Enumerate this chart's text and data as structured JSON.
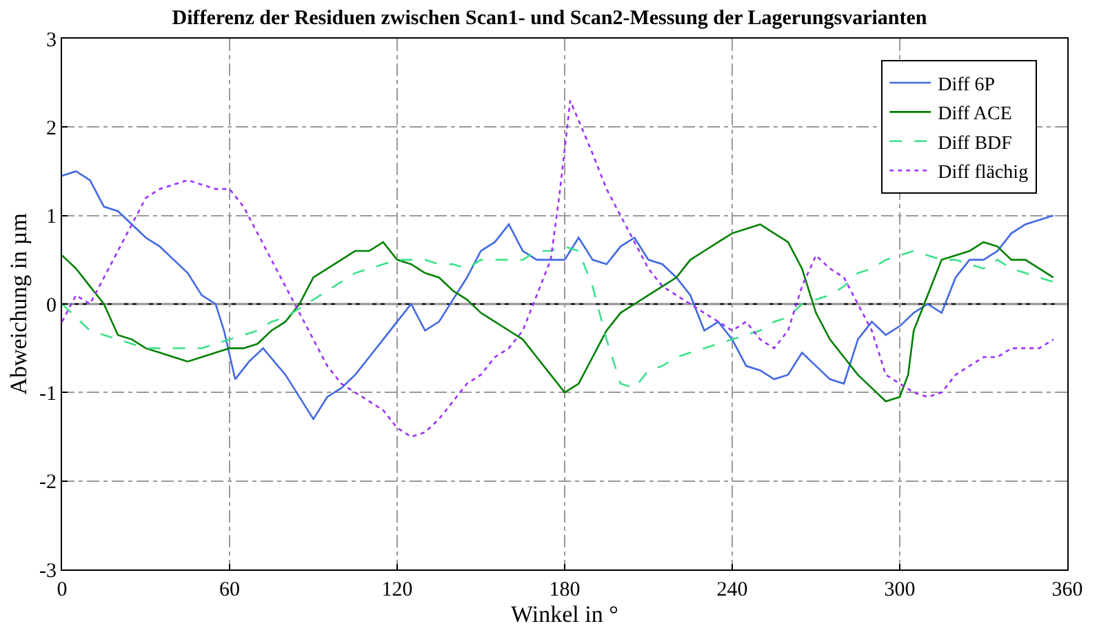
{
  "chart_data": {
    "type": "line",
    "title": "Differenz der Residuen zwischen Scan1- und Scan2-Messung der Lagerungsvarianten",
    "xlabel": "Winkel in °",
    "ylabel": "Abweichung in µm",
    "xlim": [
      0,
      360
    ],
    "xticks": [
      0,
      60,
      120,
      180,
      240,
      300,
      360
    ],
    "ylim": [
      -3,
      3
    ],
    "yticks": [
      -3,
      -2,
      -1,
      0,
      1,
      2,
      3
    ],
    "grid": true,
    "legend": "top right",
    "marker": "none",
    "ref_lines": [
      {
        "axis": "y",
        "value": 0,
        "color": "#000000",
        "line_style": "solid"
      }
    ],
    "series": [
      {
        "name": "Diff 6P",
        "color": "#4169e1",
        "line_style": "solid",
        "x": [
          0,
          5,
          10,
          15,
          20,
          25,
          30,
          35,
          40,
          45,
          50,
          55,
          58,
          62,
          67,
          72,
          80,
          90,
          95,
          100,
          105,
          110,
          115,
          120,
          125,
          130,
          135,
          140,
          145,
          150,
          155,
          160,
          165,
          170,
          175,
          180,
          185,
          190,
          195,
          200,
          205,
          210,
          215,
          220,
          225,
          230,
          235,
          240,
          245,
          250,
          255,
          260,
          265,
          270,
          275,
          280,
          285,
          290,
          295,
          300,
          305,
          310,
          315,
          320,
          325,
          330,
          335,
          340,
          345,
          350,
          355
        ],
        "values": [
          1.45,
          1.5,
          1.4,
          1.1,
          1.05,
          0.9,
          0.75,
          0.65,
          0.5,
          0.35,
          0.1,
          0.0,
          -0.3,
          -0.85,
          -0.65,
          -0.5,
          -0.8,
          -1.3,
          -1.05,
          -0.95,
          -0.8,
          -0.6,
          -0.4,
          -0.2,
          0.0,
          -0.3,
          -0.2,
          0.05,
          0.3,
          0.6,
          0.7,
          0.9,
          0.6,
          0.5,
          0.5,
          0.5,
          0.75,
          0.5,
          0.45,
          0.65,
          0.75,
          0.5,
          0.45,
          0.3,
          0.1,
          -0.3,
          -0.2,
          -0.4,
          -0.7,
          -0.75,
          -0.85,
          -0.8,
          -0.55,
          -0.7,
          -0.85,
          -0.9,
          -0.4,
          -0.2,
          -0.35,
          -0.25,
          -0.1,
          0.0,
          -0.1,
          0.3,
          0.5,
          0.5,
          0.6,
          0.8,
          0.9,
          0.95,
          1.0
        ]
      },
      {
        "name": "Diff ACE",
        "color": "#008000",
        "line_style": "solid",
        "x": [
          0,
          5,
          10,
          15,
          20,
          25,
          30,
          35,
          40,
          45,
          50,
          55,
          60,
          65,
          70,
          75,
          80,
          85,
          90,
          95,
          100,
          105,
          110,
          115,
          120,
          125,
          130,
          135,
          140,
          145,
          150,
          155,
          160,
          165,
          170,
          175,
          180,
          185,
          190,
          195,
          200,
          205,
          210,
          215,
          220,
          225,
          230,
          235,
          240,
          245,
          250,
          255,
          260,
          265,
          270,
          275,
          280,
          285,
          290,
          295,
          300,
          303,
          305,
          310,
          315,
          320,
          325,
          330,
          335,
          340,
          345,
          350,
          355
        ],
        "values": [
          0.55,
          0.4,
          0.2,
          0.0,
          -0.35,
          -0.4,
          -0.5,
          -0.55,
          -0.6,
          -0.65,
          -0.6,
          -0.55,
          -0.5,
          -0.5,
          -0.45,
          -0.3,
          -0.2,
          0.0,
          0.3,
          0.4,
          0.5,
          0.6,
          0.6,
          0.7,
          0.5,
          0.45,
          0.35,
          0.3,
          0.15,
          0.05,
          -0.1,
          -0.2,
          -0.3,
          -0.4,
          -0.6,
          -0.8,
          -1.0,
          -0.9,
          -0.6,
          -0.3,
          -0.1,
          0.0,
          0.1,
          0.2,
          0.3,
          0.5,
          0.6,
          0.7,
          0.8,
          0.85,
          0.9,
          0.8,
          0.7,
          0.4,
          -0.1,
          -0.4,
          -0.6,
          -0.8,
          -0.95,
          -1.1,
          -1.05,
          -0.8,
          -0.3,
          0.1,
          0.5,
          0.55,
          0.6,
          0.7,
          0.65,
          0.5,
          0.5,
          0.4,
          0.3
        ]
      },
      {
        "name": "Diff BDF",
        "color": "#3ce08a",
        "line_style": "dashed",
        "x": [
          0,
          5,
          10,
          15,
          20,
          25,
          30,
          35,
          40,
          45,
          50,
          55,
          60,
          65,
          70,
          75,
          80,
          85,
          90,
          95,
          100,
          105,
          110,
          115,
          120,
          125,
          130,
          135,
          140,
          145,
          150,
          155,
          160,
          165,
          170,
          175,
          180,
          185,
          190,
          195,
          200,
          205,
          210,
          215,
          220,
          225,
          230,
          235,
          240,
          245,
          250,
          255,
          260,
          265,
          270,
          275,
          280,
          285,
          290,
          295,
          300,
          305,
          310,
          315,
          320,
          325,
          330,
          335,
          340,
          345,
          350,
          355
        ],
        "values": [
          0.0,
          -0.15,
          -0.3,
          -0.35,
          -0.4,
          -0.45,
          -0.5,
          -0.5,
          -0.5,
          -0.5,
          -0.5,
          -0.45,
          -0.4,
          -0.35,
          -0.3,
          -0.2,
          -0.15,
          -0.05,
          0.05,
          0.15,
          0.25,
          0.35,
          0.4,
          0.45,
          0.5,
          0.5,
          0.5,
          0.45,
          0.45,
          0.4,
          0.5,
          0.5,
          0.5,
          0.5,
          0.6,
          0.6,
          0.65,
          0.6,
          0.2,
          -0.4,
          -0.9,
          -0.95,
          -0.75,
          -0.7,
          -0.6,
          -0.55,
          -0.5,
          -0.45,
          -0.4,
          -0.35,
          -0.3,
          -0.2,
          -0.15,
          0.0,
          0.05,
          0.1,
          0.2,
          0.35,
          0.4,
          0.5,
          0.55,
          0.6,
          0.55,
          0.5,
          0.5,
          0.45,
          0.4,
          0.5,
          0.4,
          0.35,
          0.3,
          0.25
        ]
      },
      {
        "name": "Diff flächig",
        "color": "#9b30ff",
        "line_style": "dotted",
        "x": [
          0,
          5,
          10,
          15,
          20,
          25,
          30,
          35,
          40,
          45,
          50,
          55,
          60,
          65,
          70,
          75,
          80,
          85,
          90,
          95,
          100,
          105,
          110,
          115,
          120,
          125,
          130,
          135,
          140,
          145,
          150,
          155,
          160,
          165,
          170,
          175,
          178,
          182,
          186,
          190,
          195,
          200,
          205,
          210,
          215,
          220,
          225,
          230,
          235,
          240,
          245,
          250,
          255,
          260,
          265,
          270,
          275,
          280,
          285,
          290,
          295,
          300,
          305,
          310,
          315,
          320,
          325,
          330,
          335,
          340,
          345,
          350,
          355
        ],
        "values": [
          -0.2,
          0.1,
          0.0,
          0.3,
          0.6,
          0.9,
          1.2,
          1.3,
          1.35,
          1.4,
          1.35,
          1.3,
          1.3,
          1.1,
          0.8,
          0.5,
          0.2,
          -0.1,
          -0.4,
          -0.7,
          -0.9,
          -1.0,
          -1.1,
          -1.2,
          -1.4,
          -1.5,
          -1.45,
          -1.3,
          -1.1,
          -0.9,
          -0.8,
          -0.6,
          -0.5,
          -0.3,
          0.1,
          0.5,
          1.2,
          2.3,
          2.0,
          1.7,
          1.3,
          1.0,
          0.7,
          0.4,
          0.2,
          0.1,
          0.0,
          -0.1,
          -0.2,
          -0.3,
          -0.2,
          -0.4,
          -0.5,
          -0.3,
          0.2,
          0.55,
          0.4,
          0.3,
          0.0,
          -0.3,
          -0.8,
          -0.9,
          -1.0,
          -1.05,
          -1.0,
          -0.8,
          -0.7,
          -0.6,
          -0.6,
          -0.5,
          -0.5,
          -0.5,
          -0.4
        ]
      }
    ]
  }
}
